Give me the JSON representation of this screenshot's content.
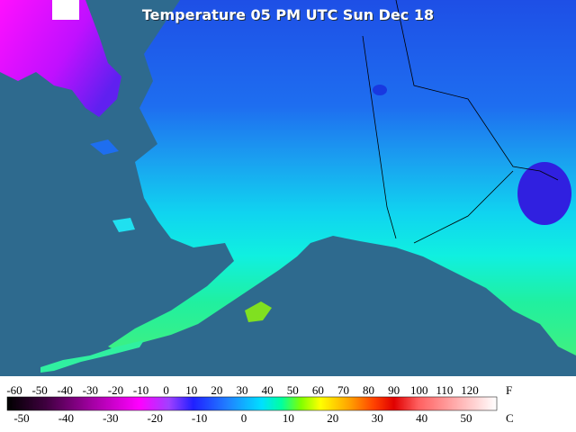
{
  "title": "Temperature 05 PM UTC Sun Dec 18",
  "legend": {
    "fahrenheit_labels": [
      "-60",
      "-50",
      "-40",
      "-30",
      "-20",
      "-10",
      "0",
      "10",
      "20",
      "30",
      "40",
      "50",
      "60",
      "70",
      "80",
      "90",
      "100",
      "110",
      "120"
    ],
    "fahrenheit_unit": "F",
    "celsius_labels": [
      "-50",
      "-40",
      "-30",
      "-20",
      "-10",
      "0",
      "10",
      "20",
      "30",
      "40",
      "50"
    ],
    "celsius_unit": "C"
  }
}
